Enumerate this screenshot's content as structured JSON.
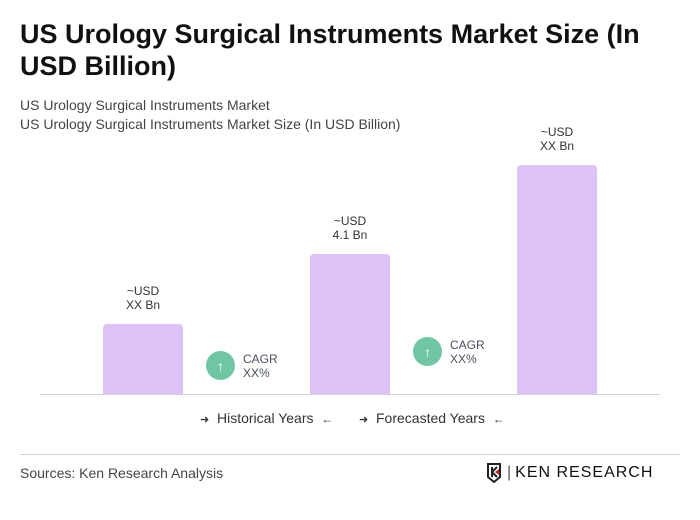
{
  "title": "US Urology Surgical Instruments Market Size (In USD Billion)",
  "subtitle1": "US Urology Surgical Instruments Market",
  "subtitle2": "US Urology Surgical Instruments Market Size (In USD Billion)",
  "chart_data": {
    "type": "bar",
    "title": "US Urology Surgical Instruments Market Size (In USD Billion)",
    "categories": [
      "",
      "",
      ""
    ],
    "values": [
      2.05,
      4.1,
      6.7
    ],
    "bar_labels": [
      [
        "~USD",
        "XX Bn"
      ],
      [
        "~USD",
        "4.1 Bn"
      ],
      [
        "~USD",
        "XX Bn"
      ]
    ],
    "bar_color": "#dcc2f6",
    "grid": false,
    "cagr": [
      {
        "label": "CAGR",
        "value": "XX%"
      },
      {
        "label": "CAGR",
        "value": "XX%"
      }
    ],
    "cagr_color": "#6fc6a2",
    "legend": [
      "Historical Years",
      "Forecasted Years"
    ]
  },
  "source": "Sources: Ken Research Analysis",
  "logo_text": "KEN RESEARCH"
}
